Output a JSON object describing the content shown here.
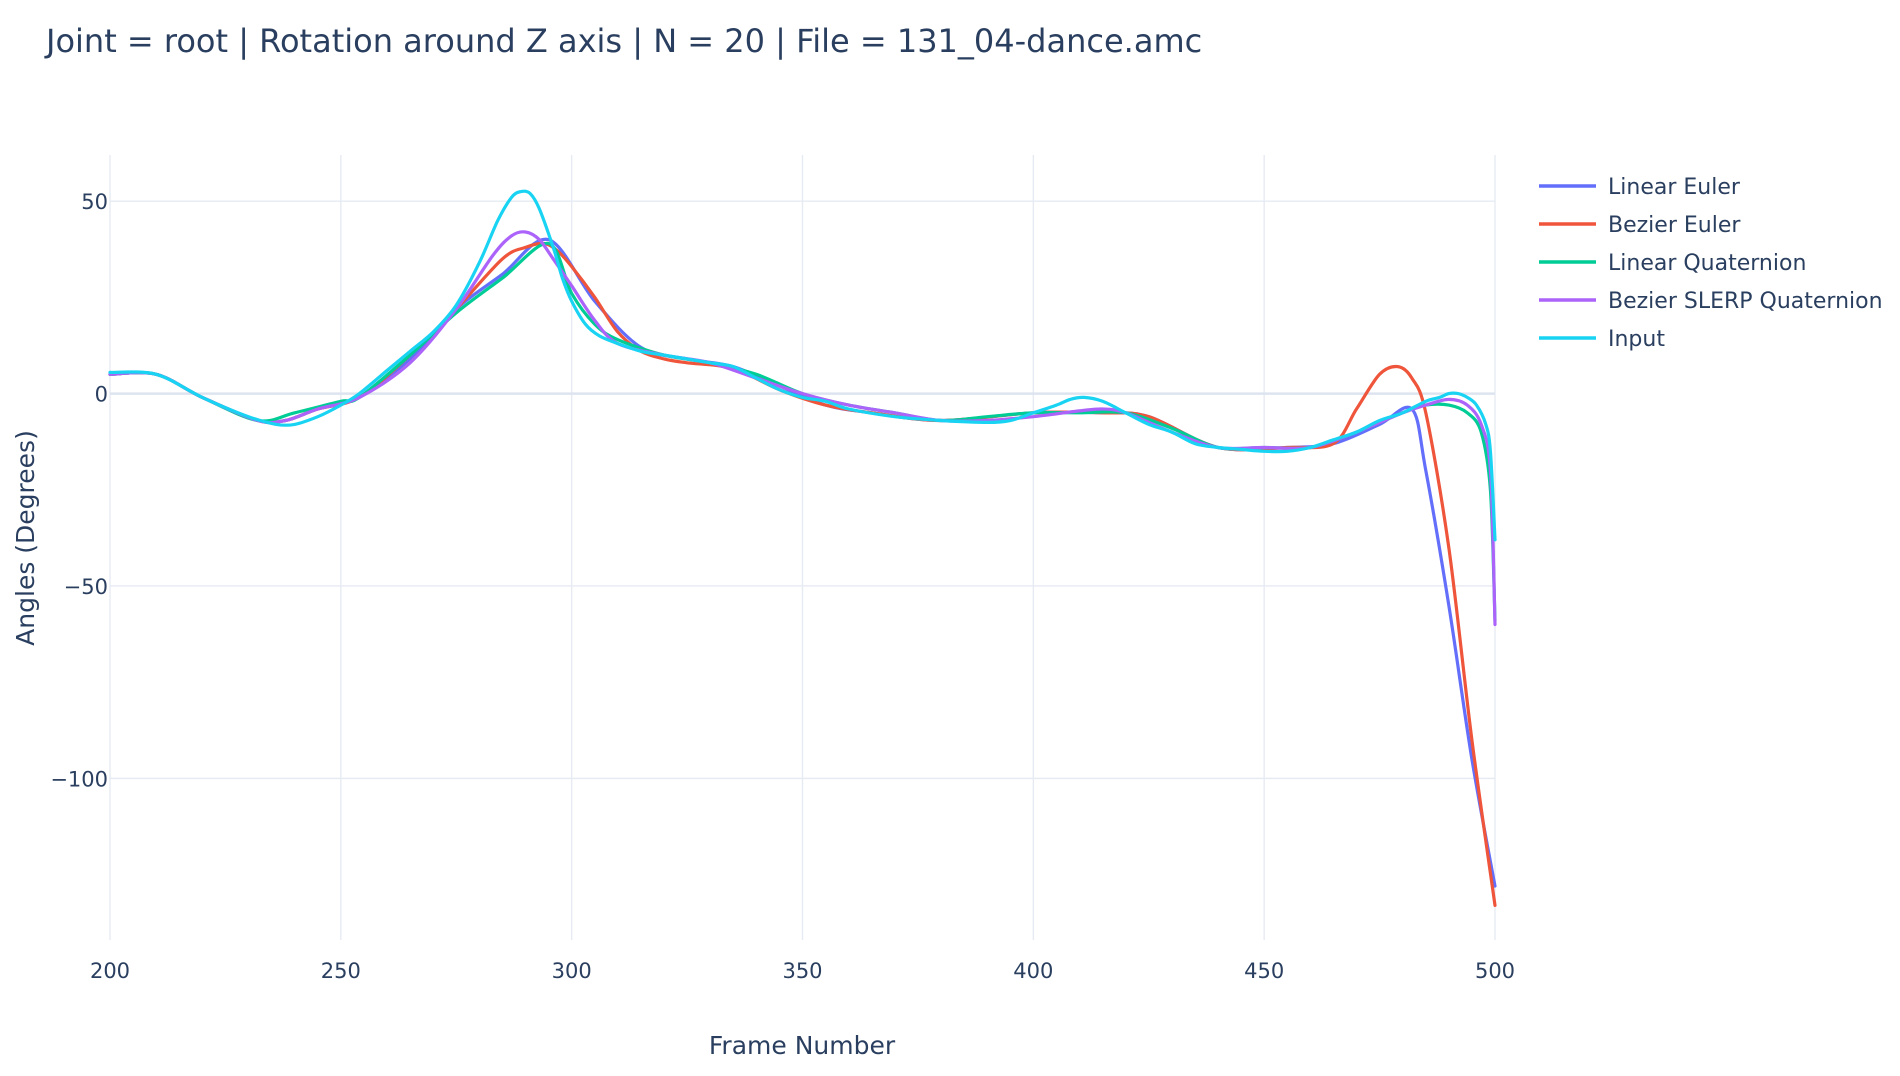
{
  "chart_data": {
    "type": "line",
    "title": "Joint = root | Rotation around Z axis | N = 20 | File = 131_04-dance.amc",
    "xlabel": "Frame Number",
    "ylabel": "Angles (Degrees)",
    "xlim": [
      200,
      500
    ],
    "ylim": [
      -142,
      62
    ],
    "x_ticks": [
      200,
      250,
      300,
      350,
      400,
      450,
      500
    ],
    "y_ticks": [
      50,
      0,
      -50,
      -100
    ],
    "x_tick_labels": [
      "200",
      "250",
      "300",
      "350",
      "400",
      "450",
      "500"
    ],
    "y_tick_labels": [
      "50",
      "0",
      "−50",
      "−100"
    ],
    "grid": true,
    "legend_position": "top-right",
    "series": [
      {
        "name": "Linear Euler",
        "color": "#636efa",
        "x": [
          200,
          210,
          220,
          232,
          238,
          245,
          254,
          265,
          275,
          285,
          295,
          305,
          315,
          325,
          335,
          345,
          355,
          365,
          380,
          400,
          415,
          425,
          440,
          455,
          465,
          475,
          482,
          485,
          490,
          495,
          500
        ],
        "y": [
          5,
          5,
          -1,
          -7,
          -7,
          -4,
          -1,
          9,
          22,
          31,
          40,
          24,
          12,
          9,
          7,
          2,
          -3,
          -5,
          -7,
          -5,
          -5,
          -6,
          -14,
          -14,
          -13,
          -8,
          -4,
          -20,
          -55,
          -95,
          -128
        ]
      },
      {
        "name": "Bezier Euler",
        "color": "#ef553b",
        "x": [
          200,
          210,
          220,
          232,
          238,
          245,
          254,
          265,
          275,
          285,
          290,
          294,
          297,
          300,
          305,
          310,
          315,
          320,
          325,
          335,
          345,
          355,
          365,
          380,
          400,
          415,
          425,
          440,
          455,
          465,
          470,
          475,
          479,
          482,
          485,
          490,
          495,
          500
        ],
        "y": [
          5,
          5,
          -1,
          -7,
          -7,
          -4,
          -1,
          10,
          22,
          35,
          38,
          39,
          37,
          33,
          25,
          16,
          11,
          9,
          8,
          6.5,
          1,
          -3,
          -5,
          -7,
          -5,
          -5,
          -6,
          -14,
          -14,
          -13,
          -4,
          5,
          7,
          4,
          -5,
          -40,
          -90,
          -133
        ]
      },
      {
        "name": "Linear Quaternion",
        "color": "#00cc96",
        "x": [
          200,
          210,
          220,
          232,
          240,
          250,
          254,
          265,
          275,
          285,
          295,
          300,
          305,
          310,
          320,
          330,
          340,
          350,
          360,
          370,
          380,
          390,
          400,
          410,
          420,
          430,
          440,
          450,
          460,
          470,
          480,
          485,
          490,
          494,
          497,
          499,
          500
        ],
        "y": [
          5,
          5,
          -1,
          -7,
          -5,
          -2,
          -1,
          10,
          21,
          30,
          39,
          26,
          18,
          14,
          10,
          8,
          5,
          0,
          -3,
          -5,
          -7,
          -6,
          -5,
          -5,
          -5,
          -9,
          -14,
          -14,
          -14,
          -10,
          -5,
          -3,
          -3,
          -5,
          -10,
          -25,
          -59
        ]
      },
      {
        "name": "Bezier SLERP Quaternion",
        "color": "#ab63fa",
        "x": [
          200,
          210,
          220,
          232,
          238,
          245,
          254,
          265,
          275,
          283,
          287,
          290,
          293,
          296,
          300,
          305,
          310,
          320,
          330,
          340,
          350,
          360,
          370,
          380,
          390,
          400,
          410,
          415,
          420,
          430,
          440,
          450,
          460,
          470,
          480,
          485,
          490,
          494,
          497,
          499,
          500
        ],
        "y": [
          5,
          5,
          -1,
          -7,
          -7,
          -4,
          -1,
          8,
          22,
          36,
          41,
          42,
          40,
          35,
          28,
          19,
          13,
          10,
          8,
          4,
          0,
          -3,
          -5,
          -7,
          -7,
          -6,
          -4.5,
          -4,
          -5,
          -10,
          -14,
          -14,
          -14,
          -10,
          -5,
          -3,
          -1.5,
          -3,
          -8,
          -20,
          -60
        ]
      },
      {
        "name": "Input",
        "color": "#19d3f3",
        "x": [
          200,
          210,
          220,
          230,
          236,
          240,
          245,
          250,
          254,
          260,
          265,
          270,
          275,
          280,
          284,
          287,
          289,
          291,
          293,
          296,
          298,
          300,
          303,
          306,
          310,
          315,
          320,
          325,
          330,
          335,
          340,
          345,
          350,
          355,
          360,
          370,
          380,
          390,
          395,
          400,
          405,
          408,
          411,
          415,
          420,
          425,
          430,
          435,
          440,
          445,
          450,
          455,
          460,
          465,
          470,
          475,
          480,
          485,
          488,
          490,
          492,
          494,
          496,
          498,
          499,
          500
        ],
        "y": [
          5.5,
          5,
          -1,
          -6,
          -8,
          -8,
          -6,
          -3,
          0,
          6,
          11,
          16,
          23,
          34,
          45,
          51,
          52.5,
          52,
          48,
          38,
          30,
          24,
          18,
          15,
          13,
          11,
          10,
          9,
          8,
          7,
          4,
          1,
          -1,
          -2,
          -4,
          -6,
          -7,
          -7.5,
          -7,
          -5,
          -3,
          -1.5,
          -1,
          -2,
          -5,
          -8,
          -10,
          -13,
          -14,
          -14.5,
          -15,
          -15,
          -14,
          -12,
          -10,
          -7,
          -5,
          -2,
          -1,
          0,
          0,
          -1,
          -3,
          -8,
          -15,
          -38
        ]
      }
    ]
  }
}
